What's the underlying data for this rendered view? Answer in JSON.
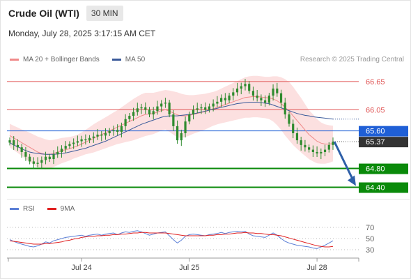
{
  "header": {
    "title": "Crude Oil (WTI)",
    "timeframe": "30 MIN",
    "timestamp": "Monday, July 28, 2025 3:17:15 AM CET"
  },
  "legend": {
    "main": [
      {
        "label": "MA 20 + Bollinger Bands",
        "color": "#f08a8a"
      },
      {
        "label": "MA 50",
        "color": "#3a5a9a"
      }
    ],
    "rsi": [
      {
        "label": "RSI",
        "color": "#5b7fd6"
      },
      {
        "label": "9MA",
        "color": "#e02020"
      }
    ]
  },
  "copyright": "Research © 2025 Trading Central",
  "colors": {
    "candle_up": "#2e8b2e",
    "candle_down": "#2e8b2e",
    "band_fill": "#fbd6d6",
    "ma20": "#f08a8a",
    "ma50": "#3a5a9a",
    "resistance": "#e05555",
    "pivot": "#1f5fd6",
    "support": "#0a8a0a",
    "last_price": "#333333",
    "arrow": "#2e5fa8"
  },
  "chart_data": [
    {
      "type": "candlestick",
      "title": "",
      "x_ticks": [
        "Jul 24",
        "Jul 25",
        "Jul 28"
      ],
      "ylim": [
        64.2,
        66.9
      ],
      "grid": false,
      "legend": "top-left",
      "levels": [
        {
          "value": 66.65,
          "label": "66.65",
          "kind": "resistance"
        },
        {
          "value": 66.05,
          "label": "66.05",
          "kind": "resistance"
        },
        {
          "value": 65.6,
          "label": "65.60",
          "kind": "pivot"
        },
        {
          "value": 64.8,
          "label": "64.80",
          "kind": "support"
        },
        {
          "value": 64.4,
          "label": "64.40",
          "kind": "support"
        }
      ],
      "last_price": {
        "value": 65.37,
        "label": "65.37"
      },
      "forecast_arrow": {
        "from": 65.37,
        "to": 64.4
      },
      "close": [
        65.4,
        65.3,
        65.25,
        65.15,
        65.05,
        64.95,
        64.9,
        64.92,
        64.98,
        65.05,
        65.0,
        65.1,
        65.15,
        65.22,
        65.28,
        65.32,
        65.35,
        65.38,
        65.42,
        65.4,
        65.45,
        65.48,
        65.52,
        65.5,
        65.55,
        65.6,
        65.62,
        65.58,
        65.7,
        65.85,
        65.92,
        66.0,
        66.08,
        66.1,
        66.05,
        65.95,
        66.02,
        66.12,
        66.18,
        66.2,
        65.95,
        65.7,
        65.4,
        65.55,
        65.8,
        65.95,
        66.05,
        66.08,
        66.1,
        66.05,
        66.12,
        66.18,
        66.22,
        66.3,
        66.25,
        66.35,
        66.42,
        66.5,
        66.55,
        66.6,
        66.45,
        66.35,
        66.3,
        66.25,
        66.2,
        66.35,
        66.5,
        66.4,
        66.2,
        65.95,
        65.75,
        65.55,
        65.4,
        65.3,
        65.25,
        65.2,
        65.15,
        65.12,
        65.15,
        65.2,
        65.3,
        65.37
      ],
      "ma20": [
        65.5,
        65.45,
        65.4,
        65.35,
        65.3,
        65.25,
        65.2,
        65.15,
        65.12,
        65.1,
        65.1,
        65.12,
        65.15,
        65.18,
        65.2,
        65.22,
        65.25,
        65.28,
        65.32,
        65.36,
        65.4,
        65.44,
        65.48,
        65.52,
        65.56,
        65.6,
        65.64,
        65.68,
        65.72,
        65.76,
        65.8,
        65.84,
        65.88,
        65.92,
        65.95,
        65.96,
        65.97,
        66.0,
        66.03,
        66.05,
        66.02,
        65.98,
        65.94,
        65.92,
        65.92,
        65.93,
        65.95,
        65.97,
        65.99,
        66.01,
        66.04,
        66.07,
        66.1,
        66.13,
        66.16,
        66.19,
        66.22,
        66.25,
        66.28,
        66.31,
        66.32,
        66.33,
        66.33,
        66.32,
        66.31,
        66.3,
        66.28,
        66.24,
        66.18,
        66.1,
        66.02,
        65.92,
        65.82,
        65.72,
        65.62,
        65.52,
        65.45,
        65.38,
        65.34,
        65.32,
        65.32,
        65.33
      ],
      "ma50": [
        65.35,
        65.3,
        65.26,
        65.22,
        65.18,
        65.15,
        65.13,
        65.12,
        65.11,
        65.1,
        65.1,
        65.1,
        65.11,
        65.12,
        65.13,
        65.15,
        65.17,
        65.19,
        65.21,
        65.23,
        65.26,
        65.29,
        65.32,
        65.35,
        65.38,
        65.42,
        65.46,
        65.5,
        65.54,
        65.58,
        65.62,
        65.66,
        65.7,
        65.74,
        65.77,
        65.8,
        65.83,
        65.86,
        65.89,
        65.91,
        65.92,
        65.92,
        65.92,
        65.93,
        65.94,
        65.95,
        65.96,
        65.98,
        66.0,
        66.02,
        66.04,
        66.06,
        66.08,
        66.1,
        66.12,
        66.14,
        66.16,
        66.18,
        66.19,
        66.2,
        66.21,
        66.21,
        66.21,
        66.2,
        66.19,
        66.18,
        66.15,
        66.12,
        66.09,
        66.06,
        66.03,
        66.0,
        65.97,
        65.95,
        65.93,
        65.92,
        65.9,
        65.89,
        65.88,
        65.87,
        65.86,
        65.85
      ],
      "bb_width": [
        0.25,
        0.26,
        0.27,
        0.28,
        0.3,
        0.31,
        0.32,
        0.33,
        0.33,
        0.32,
        0.3,
        0.29,
        0.28,
        0.27,
        0.26,
        0.25,
        0.24,
        0.24,
        0.25,
        0.26,
        0.28,
        0.3,
        0.31,
        0.32,
        0.33,
        0.34,
        0.35,
        0.36,
        0.38,
        0.4,
        0.42,
        0.44,
        0.45,
        0.46,
        0.46,
        0.45,
        0.44,
        0.43,
        0.42,
        0.42,
        0.44,
        0.46,
        0.48,
        0.47,
        0.45,
        0.43,
        0.41,
        0.4,
        0.39,
        0.38,
        0.37,
        0.36,
        0.36,
        0.37,
        0.38,
        0.39,
        0.4,
        0.41,
        0.42,
        0.43,
        0.44,
        0.44,
        0.44,
        0.44,
        0.44,
        0.45,
        0.48,
        0.52,
        0.56,
        0.6,
        0.62,
        0.62,
        0.6,
        0.58,
        0.55,
        0.52,
        0.5,
        0.47,
        0.44,
        0.42,
        0.4,
        0.38
      ]
    },
    {
      "type": "line",
      "title": "",
      "y_ticks": [
        70,
        50,
        30
      ],
      "ylim": [
        20,
        80
      ],
      "series": [
        {
          "name": "RSI",
          "values": [
            48,
            45,
            42,
            40,
            38,
            36,
            35,
            37,
            40,
            44,
            42,
            46,
            48,
            50,
            52,
            53,
            54,
            55,
            56,
            54,
            56,
            57,
            58,
            56,
            58,
            59,
            60,
            57,
            60,
            62,
            61,
            63,
            64,
            62,
            59,
            56,
            58,
            60,
            61,
            62,
            55,
            48,
            42,
            47,
            54,
            57,
            58,
            57,
            56,
            55,
            57,
            58,
            59,
            61,
            59,
            61,
            62,
            63,
            62,
            63,
            58,
            55,
            54,
            53,
            52,
            56,
            60,
            56,
            50,
            45,
            42,
            40,
            38,
            37,
            36,
            35,
            33,
            32,
            35,
            38,
            42,
            46
          ]
        },
        {
          "name": "9MA",
          "values": [
            46,
            45,
            44,
            43,
            42,
            41,
            40,
            40,
            40,
            41,
            41,
            42,
            43,
            44,
            46,
            47,
            49,
            50,
            52,
            53,
            54,
            54,
            55,
            55,
            56,
            56,
            57,
            57,
            58,
            58,
            59,
            60,
            60,
            61,
            61,
            60,
            60,
            60,
            60,
            60,
            59,
            58,
            57,
            56,
            55,
            55,
            55,
            55,
            55,
            55,
            56,
            56,
            57,
            57,
            58,
            58,
            59,
            60,
            60,
            61,
            60,
            60,
            59,
            59,
            58,
            57,
            57,
            56,
            55,
            53,
            51,
            49,
            47,
            45,
            43,
            41,
            39,
            37,
            36,
            35,
            35,
            36
          ]
        }
      ]
    }
  ]
}
